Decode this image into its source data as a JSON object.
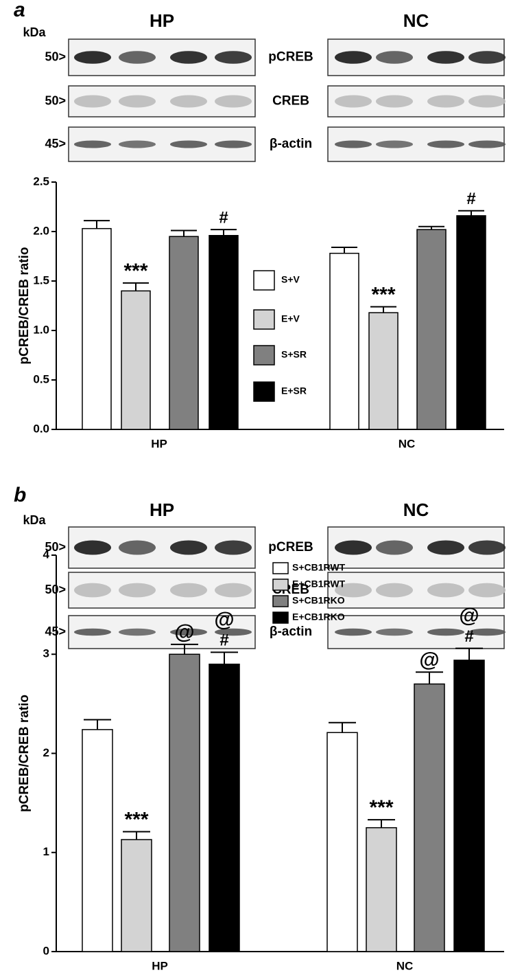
{
  "figure": {
    "panels": [
      {
        "label": "a",
        "unit": "kDa",
        "groups": [
          "HP",
          "NC"
        ],
        "rows": [
          {
            "marker": "50>",
            "name": "pCREB"
          },
          {
            "marker": "50>",
            "name": "CREB"
          },
          {
            "marker": "45>",
            "name": "β-actin"
          }
        ]
      },
      {
        "label": "b",
        "unit": "kDa",
        "groups": [
          "HP",
          "NC"
        ],
        "rows": [
          {
            "marker": "50>",
            "name": "pCREB"
          },
          {
            "marker": "50>",
            "name": "CREB"
          },
          {
            "marker": "45>",
            "name": "β-actin"
          }
        ]
      }
    ]
  },
  "chart_data": [
    {
      "type": "bar",
      "y_label": "pCREB/CREB ratio",
      "categories": [
        "HP",
        "NC"
      ],
      "ylim": [
        0,
        2.5
      ],
      "yticks": [
        {
          "value": 0,
          "label": "0.0"
        },
        {
          "value": 0.5,
          "label": "0.5"
        },
        {
          "value": 1,
          "label": "1.0"
        },
        {
          "value": 1.5,
          "label": "1.5"
        },
        {
          "value": 2,
          "label": "2.0"
        },
        {
          "value": 2.5,
          "label": "2.5"
        }
      ],
      "legend": "center",
      "series": [
        {
          "name": "S+V",
          "color": "#ffffff",
          "values": [
            2.03,
            1.78
          ],
          "errors": [
            0.08,
            0.06
          ]
        },
        {
          "name": "E+V",
          "color": "#d3d3d3",
          "values": [
            1.4,
            1.18
          ],
          "errors": [
            0.08,
            0.06
          ],
          "labels": [
            [
              "***"
            ],
            [
              "***"
            ]
          ]
        },
        {
          "name": "S+SR",
          "color": "#808080",
          "values": [
            1.95,
            2.02
          ],
          "errors": [
            0.06,
            0.03
          ]
        },
        {
          "name": "E+SR",
          "color": "#000000",
          "values": [
            1.96,
            2.16
          ],
          "errors": [
            0.06,
            0.05
          ],
          "labels": [
            [
              "#"
            ],
            [
              "#"
            ]
          ]
        }
      ]
    },
    {
      "type": "bar",
      "y_label": "pCREB/CREB ratio",
      "categories": [
        "HP",
        "NC"
      ],
      "ylim": [
        0,
        4
      ],
      "yticks": [
        0,
        1,
        2,
        3,
        4
      ],
      "legend": "upper center",
      "series": [
        {
          "name": "S+CB1RWT",
          "color": "#ffffff",
          "values": [
            2.24,
            2.21
          ],
          "errors": [
            0.1,
            0.1
          ]
        },
        {
          "name": "E+CB1RWT",
          "color": "#d3d3d3",
          "values": [
            1.13,
            1.25
          ],
          "errors": [
            0.08,
            0.08
          ],
          "labels": [
            [
              "***"
            ],
            [
              "***"
            ]
          ]
        },
        {
          "name": "S+CB1RKO",
          "color": "#808080",
          "values": [
            3.0,
            2.7
          ],
          "errors": [
            0.1,
            0.12
          ],
          "labels": [
            [
              "@"
            ],
            [
              "@"
            ]
          ]
        },
        {
          "name": "E+CB1RKO",
          "color": "#000000",
          "values": [
            2.9,
            2.94
          ],
          "errors": [
            0.12,
            0.12
          ],
          "labels": [
            [
              "@",
              "#"
            ],
            [
              "@",
              "#"
            ]
          ]
        }
      ]
    }
  ]
}
